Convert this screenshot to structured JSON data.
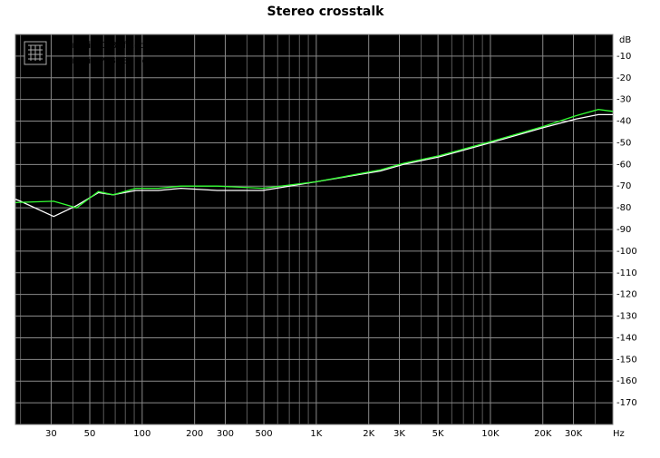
{
  "chart_data": {
    "type": "line",
    "title": "Stereo crosstalk",
    "x_unit": "Hz",
    "y_unit": "dB",
    "log_x": true,
    "grid": true,
    "x": [
      18.7,
      20,
      31,
      42,
      56,
      68,
      92,
      124,
      167,
      270,
      493,
      1000,
      2340,
      3160,
      5070,
      10000,
      20100,
      31000,
      41700,
      50500
    ],
    "series": [
      {
        "name": "Sansuix CFB (fixed version)",
        "color": "#ffffff",
        "values": [
          -76,
          -77,
          -84,
          -79,
          -73,
          -74,
          -72,
          -72,
          -71,
          -72,
          -72,
          -68,
          -63,
          -60,
          -56.5,
          -50,
          -43,
          -39,
          -37,
          -37
        ]
      },
      {
        "name": "Sansuix PFB (EP version)",
        "color": "#33ff33",
        "values": [
          -77.6,
          -77.5,
          -77,
          -80,
          -72.5,
          -74,
          -71,
          -71,
          -70,
          -70,
          -71,
          -68,
          -62.5,
          -59.5,
          -56,
          -49.5,
          -42.5,
          -37.5,
          -34.6,
          -35.5
        ]
      }
    ],
    "xlim": [
      18.7,
      50500
    ],
    "xticks": [
      30,
      50,
      100,
      200,
      300,
      500,
      {
        "value": 1000,
        "label": "1K"
      },
      {
        "value": 2000,
        "label": "2K"
      },
      {
        "value": 3000,
        "label": "3K"
      },
      {
        "value": 5000,
        "label": "5K"
      },
      {
        "value": 10000,
        "label": "10K"
      },
      {
        "value": 20000,
        "label": "20K"
      },
      {
        "value": 30000,
        "label": "30K"
      }
    ],
    "x_minor_grid": [
      20,
      40,
      60,
      70,
      80,
      90,
      400,
      600,
      700,
      800,
      900,
      4000,
      6000,
      7000,
      8000,
      9000,
      40000
    ],
    "ylim": [
      -180,
      0
    ],
    "yticks": [
      -10,
      -20,
      -30,
      -40,
      -50,
      -60,
      -70,
      -80,
      -90,
      -100,
      -110,
      -120,
      -130,
      -140,
      -150,
      -160,
      -170
    ]
  }
}
